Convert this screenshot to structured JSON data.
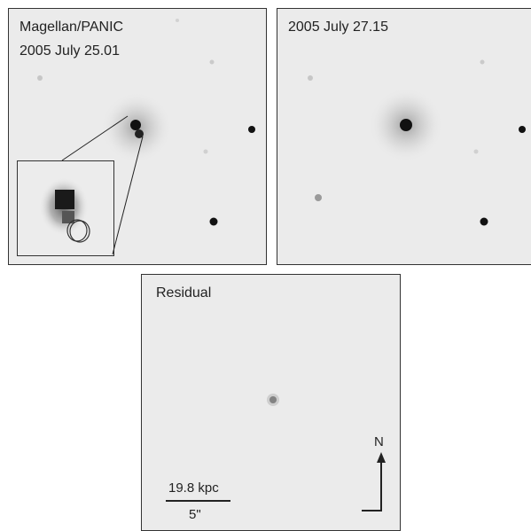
{
  "panels": [
    {
      "title_line1": "Magellan/PANIC",
      "title_line2": "2005 July 25.01"
    },
    {
      "title_line1": "2005 July 27.15"
    },
    {
      "title_line1": "Residual"
    }
  ],
  "scale_bar": {
    "physical": "19.8 kpc",
    "angular": "5\""
  },
  "compass": {
    "north": "N"
  }
}
